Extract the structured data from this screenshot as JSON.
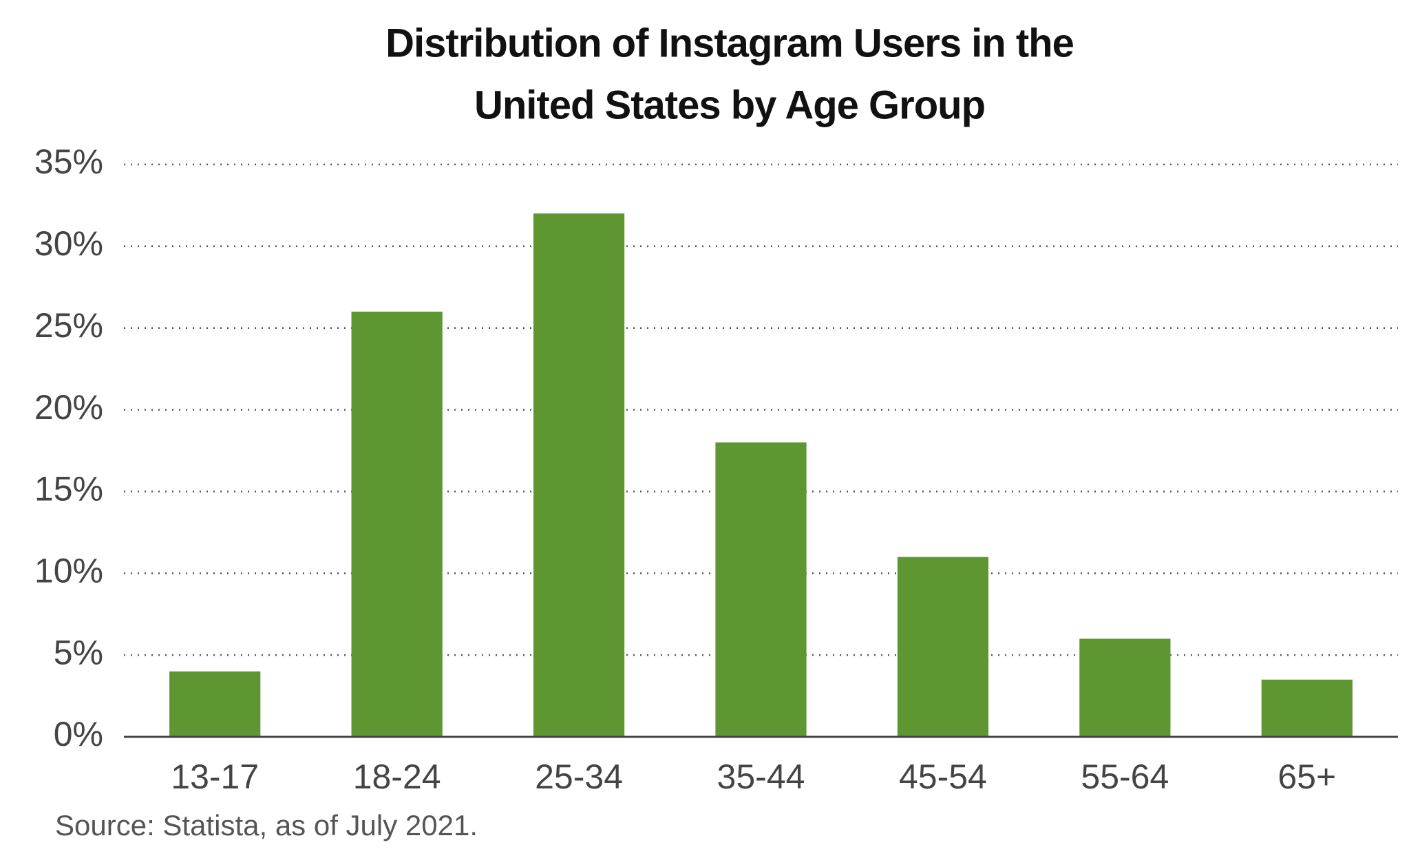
{
  "chart_data": {
    "type": "bar",
    "title": [
      "Distribution of Instagram Users in the",
      "United States by Age Group"
    ],
    "categories": [
      "13-17",
      "18-24",
      "25-34",
      "35-44",
      "45-54",
      "55-64",
      "65+"
    ],
    "values": [
      4,
      26,
      32,
      18,
      11,
      6,
      3.5
    ],
    "color": "#5e9732",
    "ylim": [
      0,
      35
    ],
    "yticks": [
      {
        "value": 0,
        "label": "0%"
      },
      {
        "value": 5,
        "label": "5%"
      },
      {
        "value": 10,
        "label": "10%"
      },
      {
        "value": 15,
        "label": "15%"
      },
      {
        "value": 20,
        "label": "20%"
      },
      {
        "value": 25,
        "label": "25%"
      },
      {
        "value": 30,
        "label": "30%"
      },
      {
        "value": 35,
        "label": "35%"
      }
    ],
    "grid": true,
    "source": "Source: Statista, as of July 2021."
  }
}
